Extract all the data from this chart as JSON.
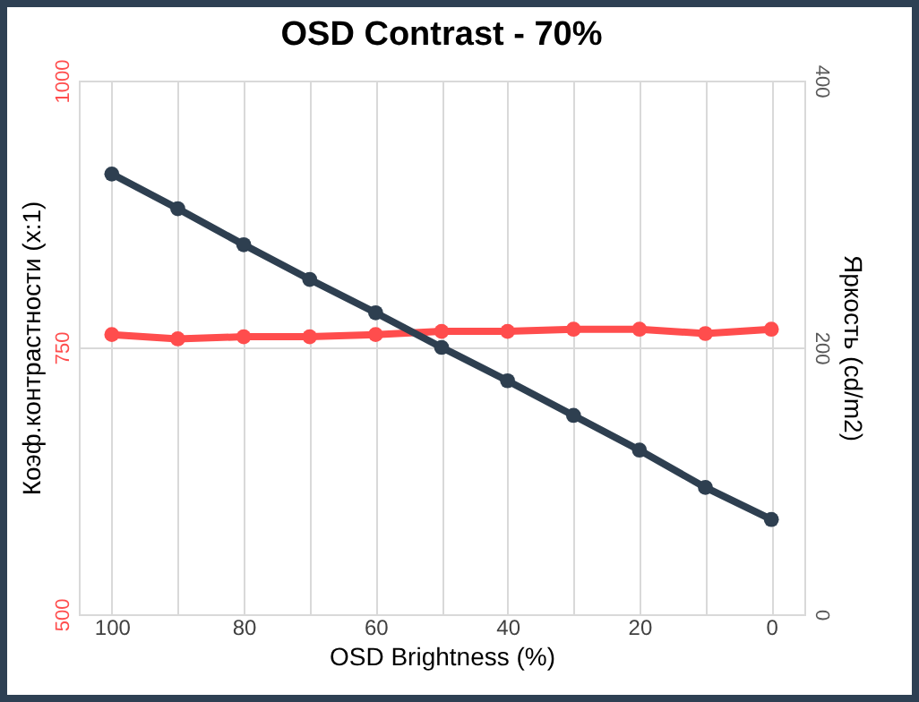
{
  "chart_data": {
    "type": "line",
    "title": "OSD Contrast - 70%",
    "xlabel": "OSD Brightness (%)",
    "ylabel": "Коэф.контрастности (x:1)",
    "y2label": "Яркость (cd/m2)",
    "categories": [
      "100",
      null,
      "80",
      null,
      "60",
      null,
      "40",
      null,
      "20",
      null,
      "0"
    ],
    "series": [
      {
        "color": "#ff4d4d",
        "values": [
          762,
          758,
          760,
          760,
          762,
          765,
          765,
          767,
          767,
          763,
          767
        ]
      },
      {
        "color": "#2e3f50",
        "axis": "y2",
        "values": [
          330,
          304,
          277,
          251,
          226,
          200,
          175,
          149,
          123,
          95,
          71
        ]
      }
    ],
    "ylim": [
      500,
      1000
    ],
    "yticks": [
      500,
      750,
      1000
    ],
    "y2lim": [
      0,
      400
    ],
    "y2ticks": [
      0,
      200,
      400
    ],
    "grid": true,
    "marker": "circle",
    "line_style": "solid"
  }
}
